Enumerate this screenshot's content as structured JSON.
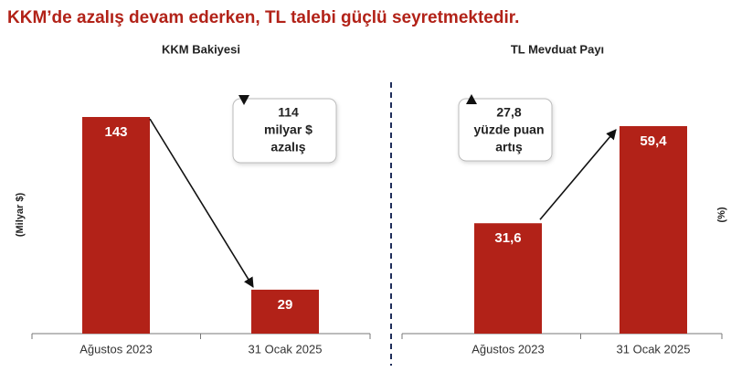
{
  "title": "KKM’de azalış devam ederken, TL talebi güçlü seyretmektedir.",
  "chart_data": [
    {
      "type": "bar",
      "title": "KKM Bakiyesi",
      "y_label": "(Milyar $)",
      "categories": [
        "Ağustos 2023",
        "31 Ocak 2025"
      ],
      "values": [
        143,
        29
      ],
      "color": "#b22218",
      "annotation": [
        "114",
        "milyar $",
        "azalış"
      ],
      "annotation_direction": "down"
    },
    {
      "type": "bar",
      "title": "TL Mevduat Payı",
      "y_label": "(%)",
      "categories": [
        "Ağustos 2023",
        "31 Ocak 2025"
      ],
      "values": [
        31.6,
        59.4
      ],
      "value_labels": [
        "31,6",
        "59,4"
      ],
      "color": "#b22218",
      "annotation": [
        "27,8",
        "yüzde puan",
        "artış"
      ],
      "annotation_direction": "up"
    }
  ]
}
